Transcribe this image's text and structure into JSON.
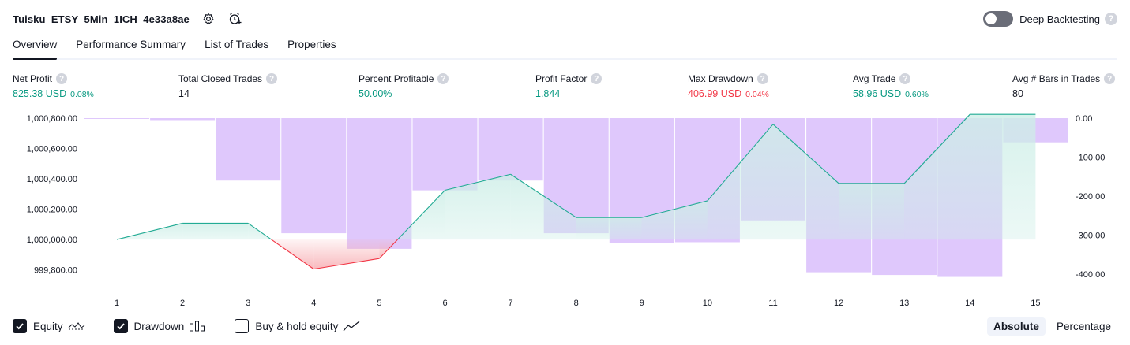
{
  "header": {
    "title": "Tuisku_ETSY_5Min_1ICH_4e33a8ae",
    "deep_backtesting_label": "Deep Backtesting",
    "help_glyph": "?"
  },
  "tabs": [
    {
      "label": "Overview",
      "active": true
    },
    {
      "label": "Performance Summary",
      "active": false
    },
    {
      "label": "List of Trades",
      "active": false
    },
    {
      "label": "Properties",
      "active": false
    }
  ],
  "metrics": [
    {
      "label": "Net Profit",
      "value": "825.38 USD",
      "pct": "0.08%",
      "tone": "pos"
    },
    {
      "label": "Total Closed Trades",
      "value": "14",
      "pct": "",
      "tone": ""
    },
    {
      "label": "Percent Profitable",
      "value": "50.00%",
      "pct": "",
      "tone": "pos"
    },
    {
      "label": "Profit Factor",
      "value": "1.844",
      "pct": "",
      "tone": "pos"
    },
    {
      "label": "Max Drawdown",
      "value": "406.99 USD",
      "pct": "0.04%",
      "tone": "neg"
    },
    {
      "label": "Avg Trade",
      "value": "58.96 USD",
      "pct": "0.60%",
      "tone": "pos"
    },
    {
      "label": "Avg # Bars in Trades",
      "value": "80",
      "pct": "",
      "tone": ""
    }
  ],
  "legend": {
    "equity_label": "Equity",
    "drawdown_label": "Drawdown",
    "buy_hold_label": "Buy & hold equity",
    "absolute_label": "Absolute",
    "percentage_label": "Percentage"
  },
  "colors": {
    "equity_line": "#22ab94",
    "equity_fill": "#cdeee7",
    "loss_line": "#f23645",
    "loss_fill": "#f7a9ae",
    "drawdown_fill": "#dcc2fc"
  },
  "chart_data": {
    "type": "bar",
    "x": [
      1,
      2,
      3,
      4,
      5,
      6,
      7,
      8,
      9,
      10,
      11,
      12,
      13,
      14,
      15
    ],
    "left_axis": {
      "ylim": [
        999720,
        1000800
      ],
      "ticks": [
        "1,000,800.00",
        "1,000,600.00",
        "1,000,400.00",
        "1,000,200.00",
        "1,000,000.00",
        "999,800.00"
      ]
    },
    "right_axis": {
      "ylim": [
        -420,
        0
      ],
      "ticks": [
        "0.00",
        "-100.00",
        "-200.00",
        "-300.00",
        "-400.00"
      ]
    },
    "series": [
      {
        "name": "Equity",
        "type": "line",
        "axis": "left",
        "values": [
          1000000,
          1000107,
          1000107,
          999805,
          999875,
          1000325,
          1000430,
          1000145,
          1000145,
          1000255,
          1000760,
          1000370,
          1000370,
          1000825,
          1000825
        ]
      },
      {
        "name": "Drawdown",
        "type": "bar",
        "axis": "right",
        "values": [
          0,
          -5,
          -160,
          -295,
          -335,
          -185,
          -160,
          -295,
          -320,
          -318,
          -262,
          -395,
          -402,
          -407,
          -62
        ]
      }
    ]
  }
}
